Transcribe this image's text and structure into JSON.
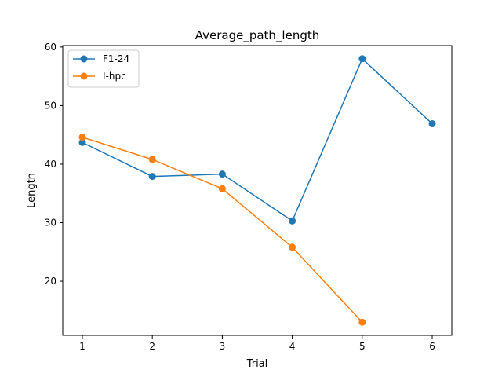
{
  "chart_data": {
    "type": "line",
    "title": "Average_path_length",
    "xlabel": "Trial",
    "ylabel": "Length",
    "xlim": [
      0.72,
      6.28
    ],
    "ylim": [
      10.75,
      60.25
    ],
    "xticks": [
      1,
      2,
      3,
      4,
      5,
      6
    ],
    "yticks": [
      20,
      30,
      40,
      50,
      60
    ],
    "grid": false,
    "legend_position": "top-left",
    "series": [
      {
        "name": "F1-24",
        "color": "#1f77b4",
        "x": [
          1,
          2,
          3,
          4,
          5,
          6
        ],
        "y": [
          43.7,
          37.9,
          38.3,
          30.3,
          58.0,
          46.9
        ]
      },
      {
        "name": "I-hpc",
        "color": "#ff7f0e",
        "x": [
          1,
          2,
          3,
          4,
          5
        ],
        "y": [
          44.6,
          40.8,
          35.8,
          25.8,
          13.0
        ]
      }
    ]
  }
}
